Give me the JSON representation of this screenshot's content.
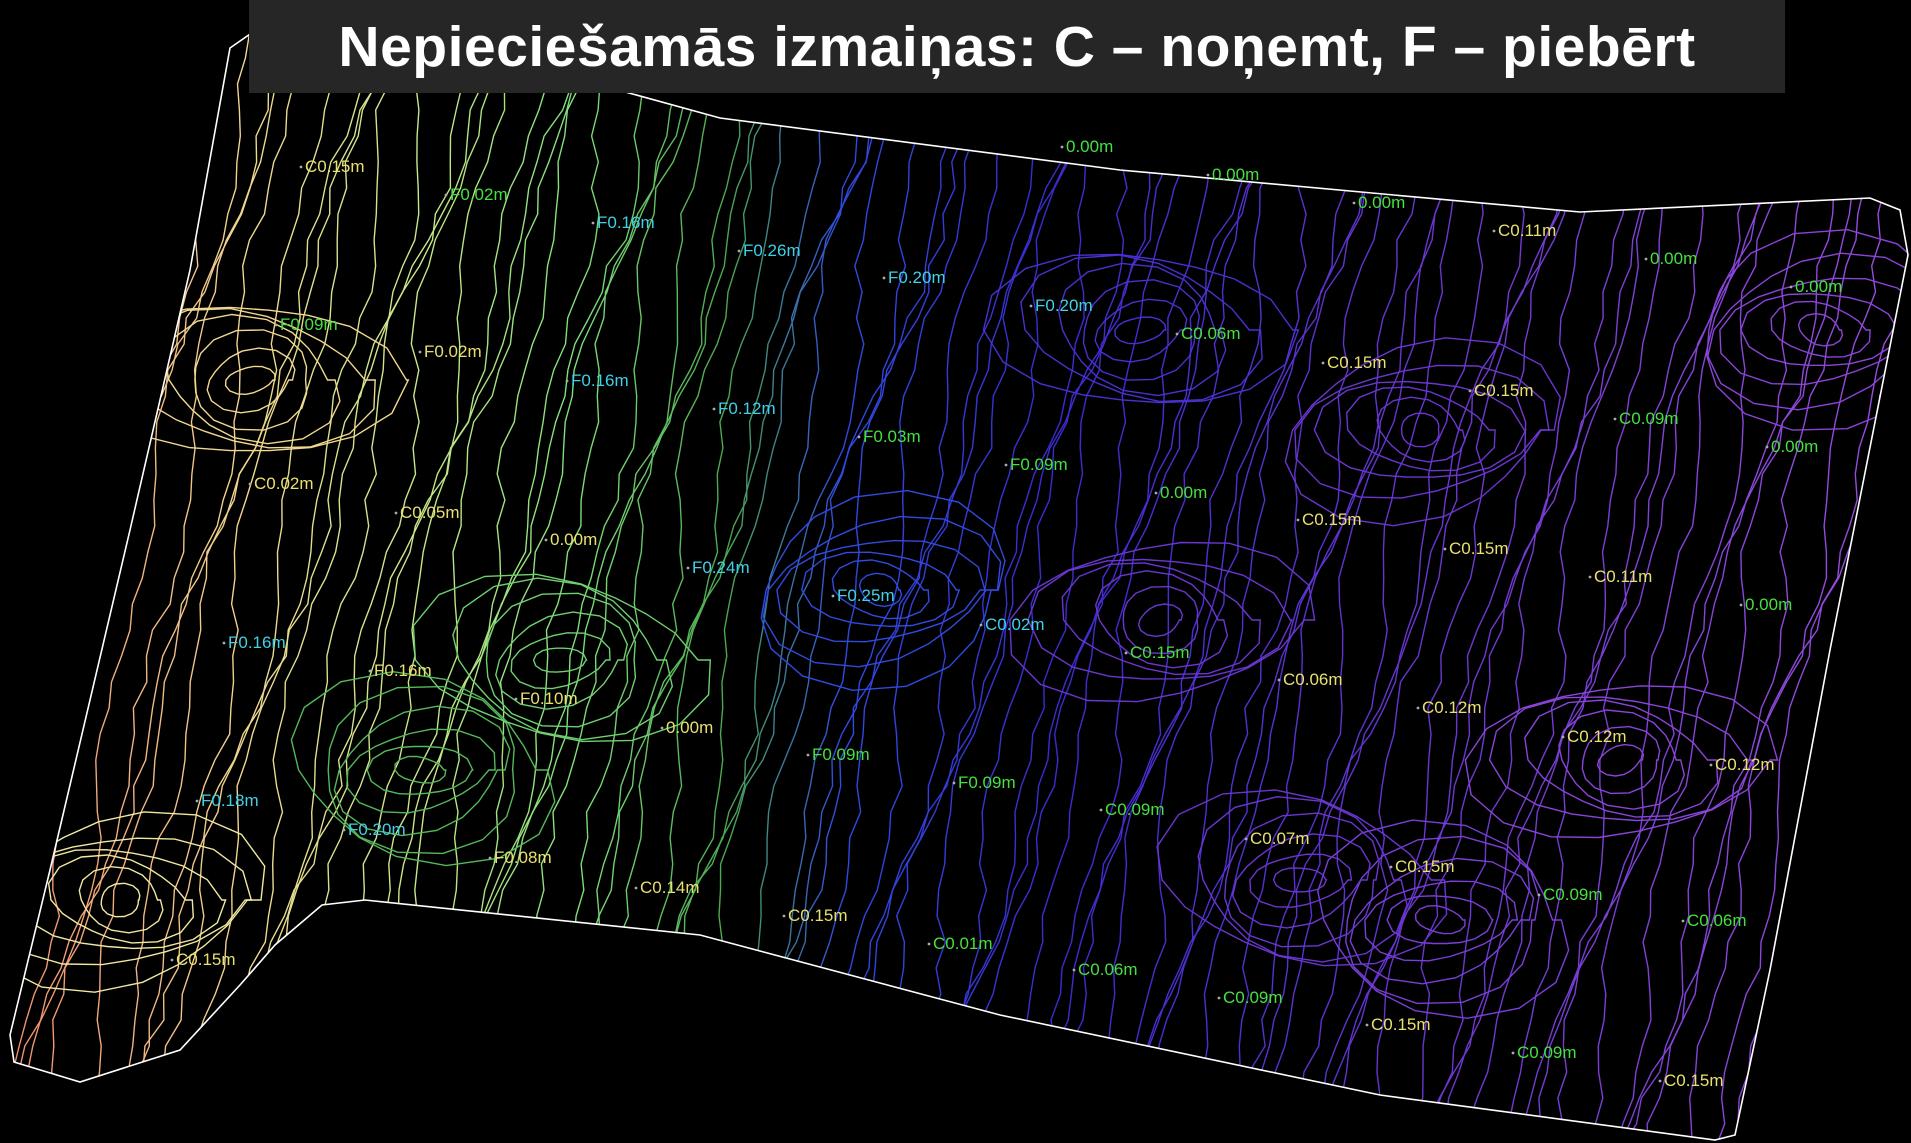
{
  "title": "Nepieciešamās izmaiņas: C – noņemt, F – piebērt",
  "colors": {
    "background": "#000000",
    "title_bar": "#262626",
    "boundary": "#ffffff",
    "gradient_west_to_east": [
      "#f08a6a",
      "#f0e090",
      "#86e07a",
      "#55b85a",
      "#2a50e0",
      "#3a2bd0",
      "#7a3fd8",
      "#9b4fe0"
    ],
    "label_cut_yellow": "#e8e070",
    "label_green": "#46e040",
    "label_cyan": "#40d0e8"
  },
  "labels": [
    {
      "text": "C0.15m"
    },
    {
      "text": "F0.02m"
    },
    {
      "text": "F0.16m"
    },
    {
      "text": "F0.26m"
    },
    {
      "text": "F0.20m"
    },
    {
      "text": "0.00m"
    },
    {
      "text": "0.00m"
    },
    {
      "text": "0.00m"
    },
    {
      "text": "C0.11m"
    },
    {
      "text": "0.00m"
    },
    {
      "text": "0.00m"
    },
    {
      "text": "F0.09m"
    },
    {
      "text": "F0.02m"
    },
    {
      "text": "F0.16m"
    },
    {
      "text": "F0.12m"
    },
    {
      "text": "F0.03m"
    },
    {
      "text": "F0.20m"
    },
    {
      "text": "C0.06m"
    },
    {
      "text": "C0.15m"
    },
    {
      "text": "C0.15m"
    },
    {
      "text": "C0.09m"
    },
    {
      "text": "0.00m"
    },
    {
      "text": "C0.02m"
    },
    {
      "text": "C0.05m"
    },
    {
      "text": "0.00m"
    },
    {
      "text": "F0.24m"
    },
    {
      "text": "F0.25m"
    },
    {
      "text": "F0.09m"
    },
    {
      "text": "0.00m"
    },
    {
      "text": "C0.15m"
    },
    {
      "text": "C0.15m"
    },
    {
      "text": "C0.11m"
    },
    {
      "text": "0.00m"
    },
    {
      "text": "F0.16m"
    },
    {
      "text": "F0.16m"
    },
    {
      "text": "F0.10m"
    },
    {
      "text": "0.00m"
    },
    {
      "text": "F0.09m"
    },
    {
      "text": "C0.02m"
    },
    {
      "text": "C0.15m"
    },
    {
      "text": "C0.06m"
    },
    {
      "text": "C0.12m"
    },
    {
      "text": "C0.12m"
    },
    {
      "text": "C0.12m"
    },
    {
      "text": "F0.18m"
    },
    {
      "text": "F0.20m"
    },
    {
      "text": "F0.08m"
    },
    {
      "text": "F0.09m"
    },
    {
      "text": "C0.09m"
    },
    {
      "text": "C0.07m"
    },
    {
      "text": "C0.15m"
    },
    {
      "text": "C0.09m"
    },
    {
      "text": "C0.14m"
    },
    {
      "text": "C0.15m"
    },
    {
      "text": "C0.01m"
    },
    {
      "text": "C0.06m"
    },
    {
      "text": "C0.09m"
    },
    {
      "text": "C0.15m"
    },
    {
      "text": "C0.06m"
    },
    {
      "text": "C0.15m"
    },
    {
      "text": "C0.09m"
    },
    {
      "text": "C0.15m"
    }
  ]
}
